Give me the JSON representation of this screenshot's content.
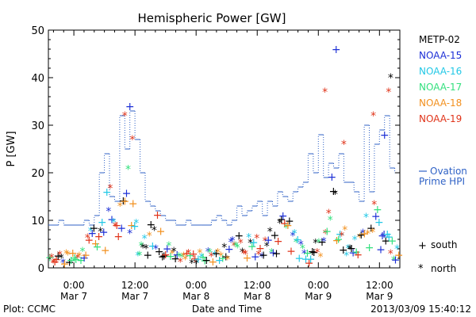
{
  "chart_data": {
    "type": "scatter",
    "title": "Hemispheric Power [GW]",
    "ylabel": "P [GW]",
    "xlabel": "Date and Time",
    "ylim": [
      0,
      50
    ],
    "y_ticks": [
      0,
      10,
      20,
      30,
      40,
      50
    ],
    "x_ticks": [
      {
        "t": 24,
        "line1": "0:00",
        "line2": "Mar 7"
      },
      {
        "t": 36,
        "line1": "12:00",
        "line2": "Mar 7"
      },
      {
        "t": 48,
        "line1": "0:00",
        "line2": "Mar 8"
      },
      {
        "t": 60,
        "line1": "12:00",
        "line2": "Mar 8"
      },
      {
        "t": 72,
        "line1": "0:00",
        "line2": "Mar 9"
      },
      {
        "t": 84,
        "line1": "12:00",
        "line2": "Mar 9"
      }
    ],
    "xlim_hours_from_mar6_0000": [
      19,
      88
    ],
    "grid": false,
    "legend_title": "METP-02",
    "series": [
      {
        "name": "METP-02",
        "color": "#000000"
      },
      {
        "name": "NOAA-15",
        "color": "#1c2fd6"
      },
      {
        "name": "NOAA-16",
        "color": "#22c8e6"
      },
      {
        "name": "NOAA-17",
        "color": "#33e07e"
      },
      {
        "name": "NOAA-18",
        "color": "#f2901e"
      },
      {
        "name": "NOAA-19",
        "color": "#e0341a"
      }
    ],
    "markers": {
      "south": "+",
      "north": "*"
    },
    "key_south": "south",
    "key_north": "north",
    "ovation": {
      "label_line1": "Ovation",
      "label_line2": "Prime HPI",
      "color": "#2f62c6",
      "steps": [
        [
          19,
          9
        ],
        [
          20,
          9
        ],
        [
          21,
          10
        ],
        [
          22,
          9
        ],
        [
          23,
          9
        ],
        [
          24,
          9
        ],
        [
          25,
          9
        ],
        [
          26,
          10
        ],
        [
          27,
          9
        ],
        [
          28,
          11
        ],
        [
          29,
          20
        ],
        [
          30,
          24
        ],
        [
          31,
          15
        ],
        [
          32,
          14
        ],
        [
          33,
          32
        ],
        [
          34,
          25
        ],
        [
          35,
          33
        ],
        [
          36,
          27
        ],
        [
          37,
          20
        ],
        [
          38,
          14
        ],
        [
          39,
          13
        ],
        [
          40,
          12
        ],
        [
          41,
          11
        ],
        [
          42,
          10
        ],
        [
          43,
          10
        ],
        [
          44,
          9
        ],
        [
          45,
          9
        ],
        [
          46,
          10
        ],
        [
          47,
          9
        ],
        [
          48,
          9
        ],
        [
          49,
          9
        ],
        [
          50,
          9
        ],
        [
          51,
          10
        ],
        [
          52,
          11
        ],
        [
          53,
          10
        ],
        [
          54,
          9
        ],
        [
          55,
          10
        ],
        [
          56,
          13
        ],
        [
          57,
          11
        ],
        [
          58,
          12
        ],
        [
          59,
          13
        ],
        [
          60,
          14
        ],
        [
          61,
          11
        ],
        [
          62,
          14
        ],
        [
          63,
          13
        ],
        [
          64,
          16
        ],
        [
          65,
          15
        ],
        [
          66,
          14
        ],
        [
          67,
          16
        ],
        [
          68,
          17
        ],
        [
          69,
          18
        ],
        [
          70,
          24
        ],
        [
          71,
          20
        ],
        [
          72,
          28
        ],
        [
          73,
          19
        ],
        [
          74,
          22
        ],
        [
          75,
          21
        ],
        [
          76,
          24
        ],
        [
          77,
          18
        ],
        [
          78,
          18
        ],
        [
          79,
          16
        ],
        [
          80,
          14
        ],
        [
          81,
          30
        ],
        [
          82,
          16
        ],
        [
          83,
          26
        ],
        [
          84,
          29
        ],
        [
          85,
          32
        ],
        [
          86,
          21
        ],
        [
          87,
          20
        ]
      ]
    }
  },
  "footer": {
    "plot_credit": "Plot: CCMC",
    "timestamp": "2013/03/09 15:40:12"
  }
}
